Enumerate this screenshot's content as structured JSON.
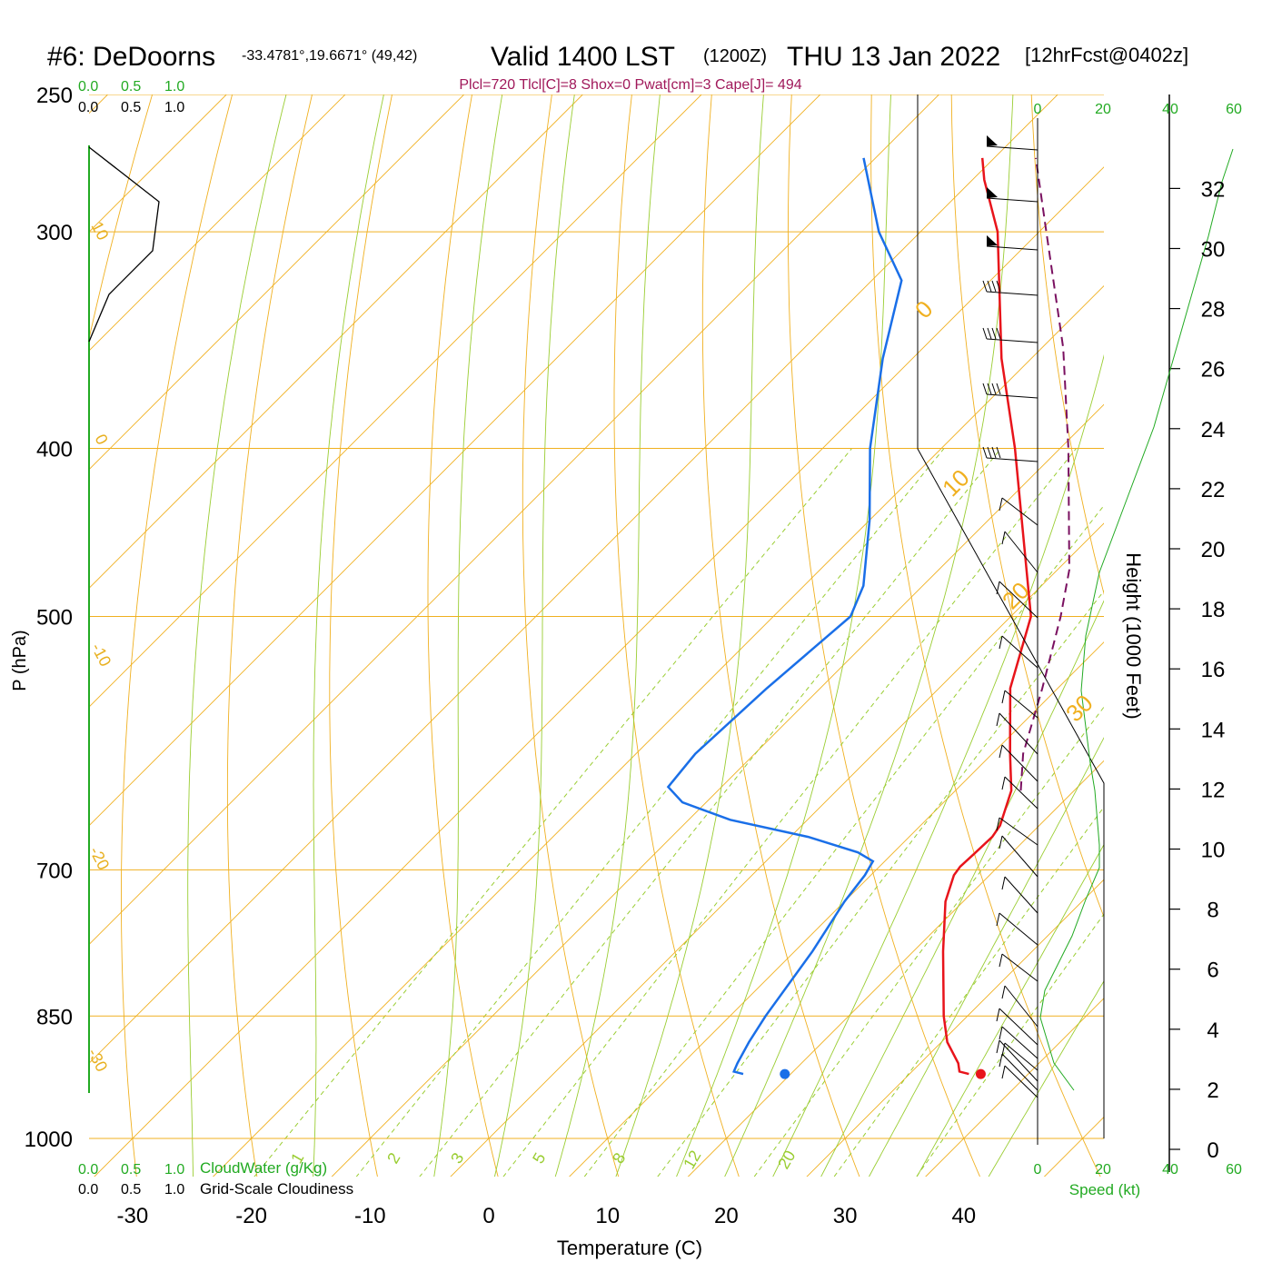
{
  "header": {
    "station": "#6: DeDoorns",
    "coords": "-33.4781°,19.6671° (49,42)",
    "valid": "Valid 1400 LST",
    "zulu": "(1200Z)",
    "date": "THU 13 Jan 2022",
    "forecast": "[12hrFcst@0402z]",
    "indices": "Plcl=720 Tlcl[C]=8 Shox=0 Pwat[cm]=3 Cape[J]= 494"
  },
  "colors": {
    "temperature": "#e8141b",
    "dewpoint": "#1a6fe8",
    "parcel": "#7a1060",
    "isobar": "#f0b020",
    "isotherm": "#f0b020",
    "dry_adiabat": "#f0b020",
    "moist_adiabat": "#9acd32",
    "mixing_ratio": "#9acd32",
    "cloud": "#22aa22",
    "indices": "#a0185a"
  },
  "labels": {
    "cloud_ticks_green": [
      "0.0",
      "0.5",
      "1.0"
    ],
    "cloud_ticks_black": [
      "0.0",
      "0.5",
      "1.0"
    ],
    "cloudwater_title": "CloudWater (g/Kg)",
    "cloudiness_title": "Grid-Scale Cloudiness",
    "speed_ticks": [
      "0",
      "20",
      "40",
      "60"
    ],
    "speed_title": "Speed (kt)",
    "height_title": "Height (1000 Feet)",
    "dry_adiabat_labels": [
      "10",
      "0",
      "-10",
      "-20",
      "-30"
    ],
    "isotherm_labels": [
      "0",
      "10",
      "20",
      "30"
    ],
    "mixing_ratio_labels": [
      "1",
      "2",
      "3",
      "5",
      "8",
      "12",
      "20"
    ]
  },
  "chart_data": {
    "type": "line",
    "title": "#6: DeDoorns",
    "xlabel": "Temperature (C)",
    "ylabel": "P (hPa)",
    "xlim": [
      -30,
      40
    ],
    "pressure_ticks": [
      250,
      300,
      400,
      500,
      700,
      850,
      1000
    ],
    "temperature_ticks": [
      -30,
      -20,
      -10,
      0,
      10,
      20,
      30,
      40
    ],
    "height_ticks": [
      0,
      2,
      4,
      6,
      8,
      10,
      12,
      14,
      16,
      18,
      20,
      22,
      24,
      26,
      28,
      30,
      32
    ],
    "series": [
      {
        "name": "temperature",
        "points": [
          {
            "p": 918,
            "t": 35.0
          },
          {
            "p": 915,
            "t": 34.0
          },
          {
            "p": 905,
            "t": 33.2
          },
          {
            "p": 880,
            "t": 30.5
          },
          {
            "p": 850,
            "t": 28.0
          },
          {
            "p": 780,
            "t": 22.5
          },
          {
            "p": 730,
            "t": 18.5
          },
          {
            "p": 705,
            "t": 17.0
          },
          {
            "p": 697,
            "t": 16.8
          },
          {
            "p": 685,
            "t": 16.9
          },
          {
            "p": 670,
            "t": 17.0
          },
          {
            "p": 660,
            "t": 16.7
          },
          {
            "p": 630,
            "t": 14.7
          },
          {
            "p": 600,
            "t": 11.5
          },
          {
            "p": 550,
            "t": 6.0
          },
          {
            "p": 500,
            "t": 1.7
          },
          {
            "p": 400,
            "t": -13.8
          },
          {
            "p": 355,
            "t": -22.5
          },
          {
            "p": 300,
            "t": -33.5
          },
          {
            "p": 280,
            "t": -39.0
          },
          {
            "p": 272,
            "t": -41.0
          }
        ]
      },
      {
        "name": "dewpoint",
        "points": [
          {
            "p": 918,
            "t": 16.0
          },
          {
            "p": 915,
            "t": 15.0
          },
          {
            "p": 905,
            "t": 14.6
          },
          {
            "p": 880,
            "t": 13.8
          },
          {
            "p": 850,
            "t": 13.0
          },
          {
            "p": 780,
            "t": 11.5
          },
          {
            "p": 730,
            "t": 10.0
          },
          {
            "p": 705,
            "t": 9.5
          },
          {
            "p": 692,
            "t": 9.0
          },
          {
            "p": 684,
            "t": 7.0
          },
          {
            "p": 670,
            "t": 1.5
          },
          {
            "p": 655,
            "t": -6.5
          },
          {
            "p": 640,
            "t": -12.0
          },
          {
            "p": 627,
            "t": -14.5
          },
          {
            "p": 600,
            "t": -15.0
          },
          {
            "p": 550,
            "t": -14.5
          },
          {
            "p": 500,
            "t": -13.5
          },
          {
            "p": 480,
            "t": -15.0
          },
          {
            "p": 440,
            "t": -20.0
          },
          {
            "p": 400,
            "t": -26.0
          },
          {
            "p": 355,
            "t": -32.5
          },
          {
            "p": 320,
            "t": -37.5
          },
          {
            "p": 300,
            "t": -43.5
          },
          {
            "p": 272,
            "t": -51.0
          }
        ]
      },
      {
        "name": "parcel",
        "points": [
          {
            "p": 630,
            "t": 15.5
          },
          {
            "p": 600,
            "t": 12.6
          },
          {
            "p": 550,
            "t": 8.7
          },
          {
            "p": 500,
            "t": 4.2
          },
          {
            "p": 470,
            "t": 1.0
          },
          {
            "p": 400,
            "t": -9.3
          },
          {
            "p": 350,
            "t": -18.2
          },
          {
            "p": 300,
            "t": -29.4
          },
          {
            "p": 272,
            "t": -36.5
          }
        ]
      }
    ],
    "surface_markers": [
      {
        "name": "temperature",
        "p": 918,
        "t": 36.0
      },
      {
        "name": "dewpoint",
        "p": 918,
        "t": 19.5
      }
    ]
  }
}
